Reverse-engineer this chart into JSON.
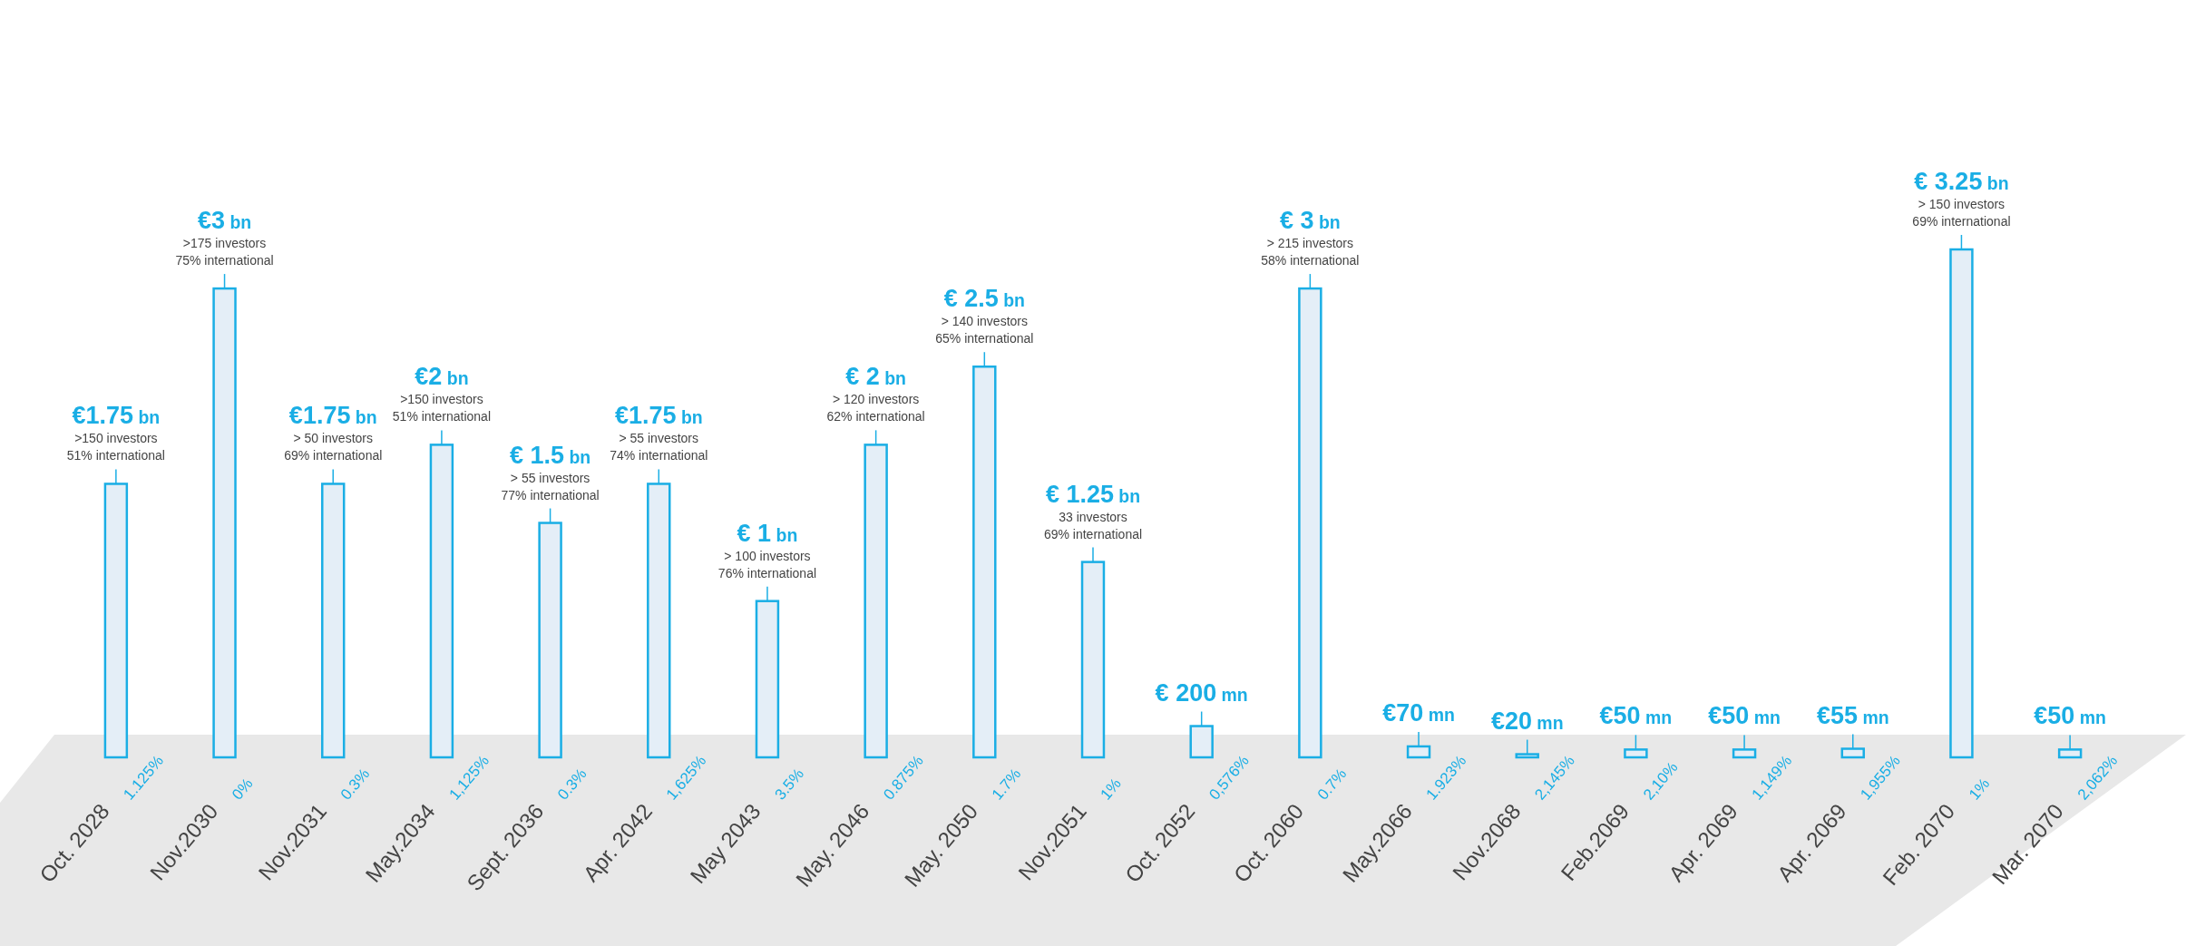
{
  "chart_data": {
    "type": "bar",
    "categories": [
      "Oct. 2028",
      "Nov.2030",
      "Nov.2031",
      "May.2034",
      "Sept. 2036",
      "Apr. 2042",
      "May 2043",
      "May. 2046",
      "May. 2050",
      "Nov.2051",
      "Oct. 2052",
      "Oct. 2060",
      "May.2066",
      "Nov.2068",
      "Feb.2069",
      "Apr. 2069",
      "Apr. 2069",
      "Feb. 2070",
      "Mar. 2070"
    ],
    "values": [
      1.75,
      3,
      1.75,
      2,
      1.5,
      1.75,
      1,
      2,
      2.5,
      1.25,
      0.2,
      3,
      0.07,
      0.02,
      0.05,
      0.05,
      0.055,
      3.25,
      0.05
    ],
    "value_labels": [
      "€1.75 bn",
      "€3 bn",
      "€1.75 bn",
      "€2 bn",
      "€ 1.5 bn",
      "€1.75 bn",
      "€ 1 bn",
      "€ 2 bn",
      "€ 2.5 bn",
      "€ 1.25 bn",
      null,
      "€ 3 bn",
      null,
      null,
      null,
      null,
      null,
      "€ 3.25 bn",
      null
    ],
    "color": "#e4eef7",
    "annotations": [
      {
        "text": "€ 200 mn",
        "x": "Oct. 2052",
        "y": 0.2
      },
      {
        "text": "€70 mn",
        "x": "May.2066",
        "y": 0.07
      },
      {
        "text": "€20 mn",
        "x": "Nov.2068",
        "y": 0.02
      },
      {
        "text": "€50 mn",
        "x": "Feb.2069",
        "y": 0.05
      },
      {
        "text": "€50 mn",
        "x": "Apr. 2069",
        "y": 0.05
      },
      "€55 mn",
      {
        "text": "€50 mn",
        "x": "Mar. 2070",
        "y": 0.05
      },
      ">150 investors",
      "51% international",
      ">175 investors",
      "75% international",
      "> 50 investors",
      "69% international",
      ">150 investors",
      "51% international",
      "> 55 investors",
      "77% international",
      "> 55 investors",
      "74% international",
      "> 100 investors",
      "76% international",
      "> 120 investors",
      "62% international",
      "> 140 investors",
      "65% international",
      "33 investors",
      "69% international",
      "> 215 investors",
      "58% international",
      "> 150 investors",
      "69% international",
      {
        "text": "1.125%",
        "x": "Oct. 2028",
        "y": 0
      },
      {
        "text": "0%",
        "x": "Nov.2030",
        "y": 0
      },
      {
        "text": "0.3%",
        "x": "Nov.2031",
        "y": 0
      },
      {
        "text": "1,125%",
        "x": "May.2034",
        "y": 0
      },
      {
        "text": "0.3%",
        "x": "Sept. 2036",
        "y": 0
      },
      {
        "text": "1,625%",
        "x": "Apr. 2042",
        "y": 0
      },
      {
        "text": "3.5%",
        "x": "May 2043",
        "y": 0
      },
      {
        "text": "0.875%",
        "x": "May. 2046",
        "y": 0
      },
      {
        "text": "1.7%",
        "x": "May. 2050",
        "y": 0
      },
      {
        "text": "1%",
        "x": "Nov.2051",
        "y": 0
      },
      {
        "text": "0,576%",
        "x": "Oct. 2052",
        "y": 0
      },
      {
        "text": "0.7%",
        "x": "Oct. 2060",
        "y": 0
      },
      {
        "text": "1.923%",
        "x": "May.2066",
        "y": 0
      },
      {
        "text": "2,145%",
        "x": "Nov.2068",
        "y": 0
      },
      {
        "text": "2,10%",
        "x": "Feb.2069",
        "y": 0
      },
      {
        "text": "1,149%",
        "x": "Apr. 2069",
        "y": 0
      },
      {
        "text": "1%",
        "x": "Feb. 2070",
        "y": 0
      },
      {
        "text": "2,062%",
        "x": "Mar. 2070",
        "y": 0
      },
      "1,955%"
    ]
  }
}
